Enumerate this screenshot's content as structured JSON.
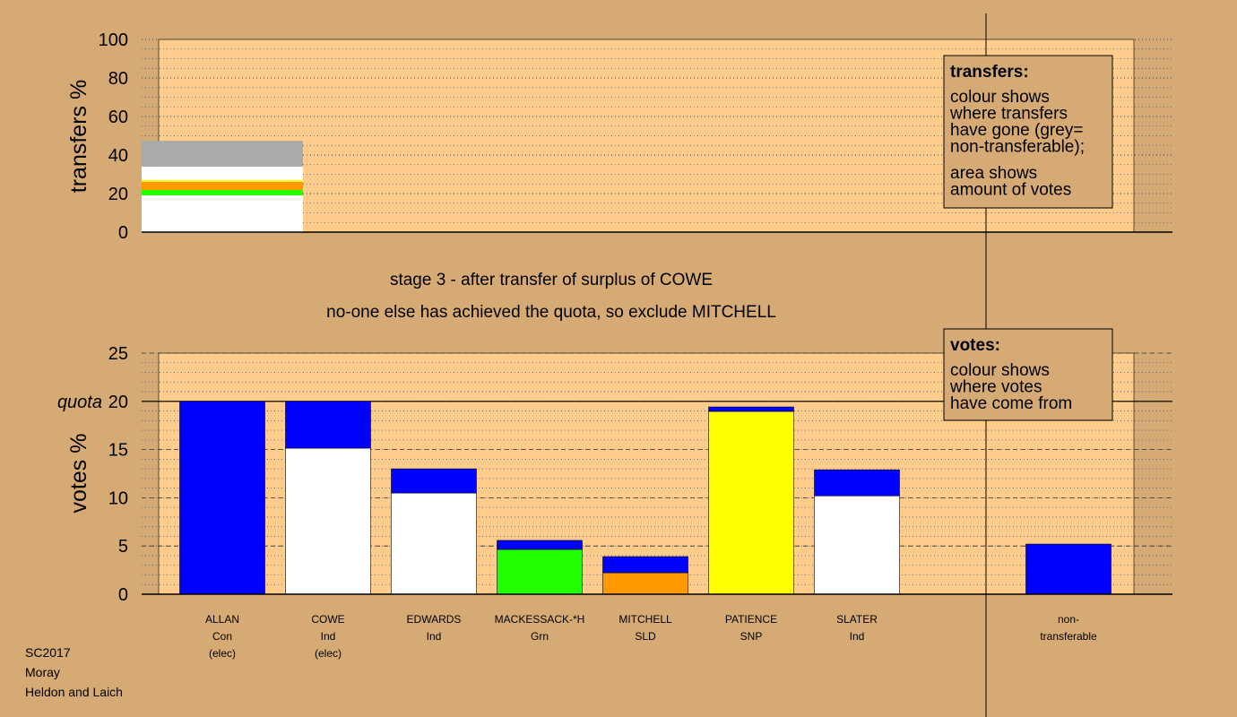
{
  "chart_data": [
    {
      "type": "stacked_bar",
      "y_label": "transfers %",
      "categories": [
        null
      ],
      "series": [
        {
          "color": "#ffffff",
          "values": [
            19.1
          ]
        },
        {
          "color": "#22ff00",
          "values": [
            2.8
          ]
        },
        {
          "color": "#ff9900",
          "values": [
            4.2
          ]
        },
        {
          "color": "#ffff00",
          "values": [
            0.9
          ]
        },
        {
          "color": "#ffffff",
          "values": [
            7
          ]
        },
        {
          "color": "#aaaaaa",
          "values": [
            13.4
          ]
        }
      ],
      "ylim": [
        0,
        100
      ],
      "yticks": [
        0,
        20,
        40,
        60,
        80,
        100
      ],
      "minor_grid_step": 5
    },
    {
      "type": "stacked_bar",
      "y_label": "votes %",
      "categories": [
        [
          "ALLAN",
          "Con",
          "(elec)"
        ],
        [
          "COWE",
          "Ind",
          "(elec)"
        ],
        [
          "EDWARDS",
          "Ind"
        ],
        [
          "MACKESSACK-*H",
          "Grn"
        ],
        [
          "MITCHELL",
          "SLD"
        ],
        [
          "PATIENCE",
          "SNP"
        ],
        [
          "SLATER",
          "Ind"
        ],
        null,
        [
          "non-",
          "transferable"
        ]
      ],
      "series": [
        {
          "colors": [
            "#0000ff",
            "#ffffff",
            "#ffffff",
            "#22ff00",
            "#ff9900",
            "#ffff00",
            "#ffffff",
            null,
            "#0000ff"
          ],
          "values": [
            20,
            15.15,
            10.5,
            4.65,
            2.23,
            18.96,
            10.2,
            null,
            5.2
          ]
        },
        {
          "color": "#0000ff",
          "values": [
            null,
            4.85,
            2.5,
            0.93,
            1.67,
            0.46,
            2.7,
            null,
            null
          ]
        }
      ],
      "ylim": [
        0,
        25
      ],
      "yticks": [
        0,
        5,
        10,
        15,
        20,
        25
      ],
      "minor_grid_step": 1,
      "quota": {
        "value": 20,
        "label": "quota"
      }
    }
  ],
  "stage_text": [
    "stage 3 - after transfer of surplus of COWE",
    "no-one else has achieved the quota, so exclude MITCHELL"
  ],
  "transfers_box": {
    "title": "transfers:",
    "para1": [
      "colour shows",
      "where transfers",
      "have gone (grey=",
      "non-transferable);"
    ],
    "para2": [
      "area shows",
      "amount of votes"
    ]
  },
  "votes_box": {
    "title": "votes:",
    "para1": [
      "colour shows",
      "where votes",
      "have come from"
    ]
  },
  "footer": [
    "SC2017",
    "Moray",
    "Heldon and Laich"
  ]
}
